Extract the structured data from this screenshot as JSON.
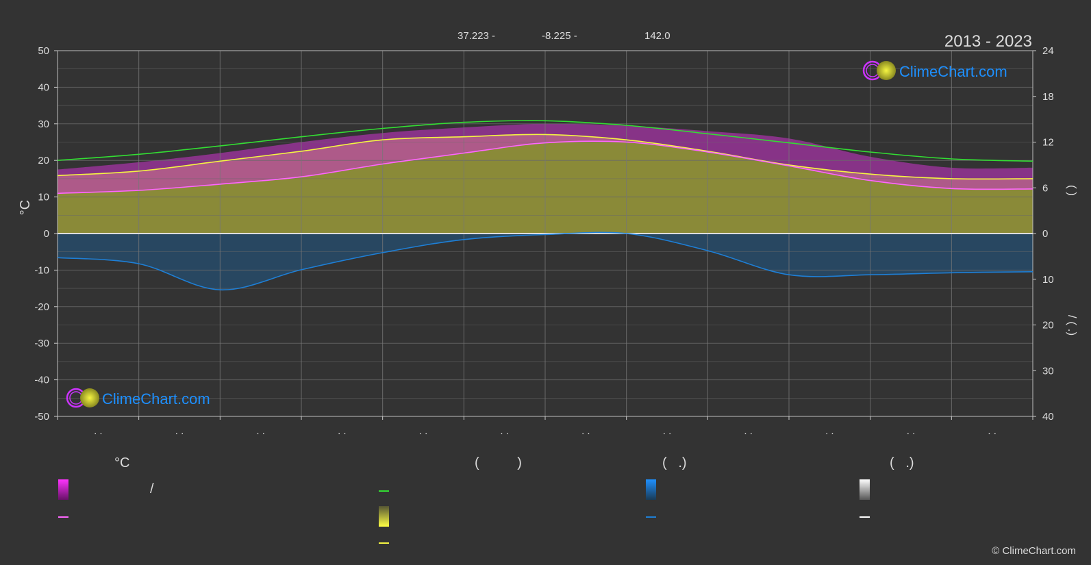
{
  "header": {
    "coords": [
      "37.223 -",
      "-8.225 -",
      "142.0"
    ],
    "period": "2013 - 2023"
  },
  "brand": {
    "name": "ClimeChart.com",
    "copyright": "© ClimeChart.com"
  },
  "colors": {
    "background": "#333333",
    "daylight_line": "#33dd33",
    "sunshine_line": "#f5f542",
    "temp_line": "#ff66ff",
    "precip_line": "#1e7fd6",
    "sunshine_band": "#9a9a3a",
    "temp_band": "#cc33cc",
    "precip_band": "#1e5c90"
  },
  "axes": {
    "left_title": "°C",
    "right_top_title": "(   )",
    "right_bottom_title": "/   (   .)",
    "month_tick_labels": [
      ". .",
      ". .",
      ". .",
      ". .",
      ". .",
      ". .",
      ". .",
      ". .",
      ". .",
      ". .",
      ". .",
      ". ."
    ]
  },
  "legend": {
    "headers": [
      "°C",
      "(          )",
      "(   .)",
      "(   .)"
    ],
    "col1_text": "/"
  },
  "chart_data": {
    "type": "area",
    "x_unit": "month",
    "x": [
      0,
      1,
      2,
      3,
      4,
      5,
      6,
      7,
      8,
      9,
      10,
      11,
      12
    ],
    "ylim_left": [
      -50,
      50
    ],
    "yticks_left": [
      50,
      40,
      30,
      20,
      10,
      0,
      -10,
      -20,
      -30,
      -40,
      -50
    ],
    "ylim_right_top": [
      0,
      24
    ],
    "yticks_right_top": [
      24,
      18,
      12,
      6,
      0
    ],
    "ylim_right_bottom": [
      0,
      40
    ],
    "yticks_right_bottom": [
      0,
      10,
      20,
      30,
      40
    ],
    "grid": true,
    "series": [
      {
        "key": "daylight",
        "axis": "hours",
        "values": [
          9.6,
          10.4,
          11.5,
          12.7,
          13.8,
          14.6,
          14.8,
          14.2,
          13.1,
          11.9,
          10.7,
          9.8,
          9.5
        ]
      },
      {
        "key": "sunshine",
        "axis": "hours",
        "values": [
          7.6,
          8.2,
          9.5,
          10.8,
          12.3,
          12.7,
          13.0,
          12.3,
          10.8,
          9.0,
          7.8,
          7.2,
          7.2
        ]
      },
      {
        "key": "temp_mean",
        "axis": "celsius",
        "values": [
          11.0,
          11.8,
          13.5,
          15.5,
          19.0,
          22.0,
          24.8,
          25.0,
          22.3,
          18.5,
          14.5,
          12.3,
          12.2
        ]
      },
      {
        "key": "temp_max_band",
        "axis": "celsius",
        "values": [
          17.5,
          19.5,
          22.0,
          25.0,
          27.5,
          29.0,
          30.0,
          29.5,
          28.0,
          26.0,
          21.0,
          18.0,
          18.0
        ]
      },
      {
        "key": "precip_mean",
        "axis": "mm",
        "values": [
          2.4,
          3.0,
          5.6,
          3.6,
          1.9,
          0.6,
          0.1,
          0.0,
          1.7,
          4.1,
          4.1,
          3.9,
          3.8
        ]
      }
    ]
  }
}
